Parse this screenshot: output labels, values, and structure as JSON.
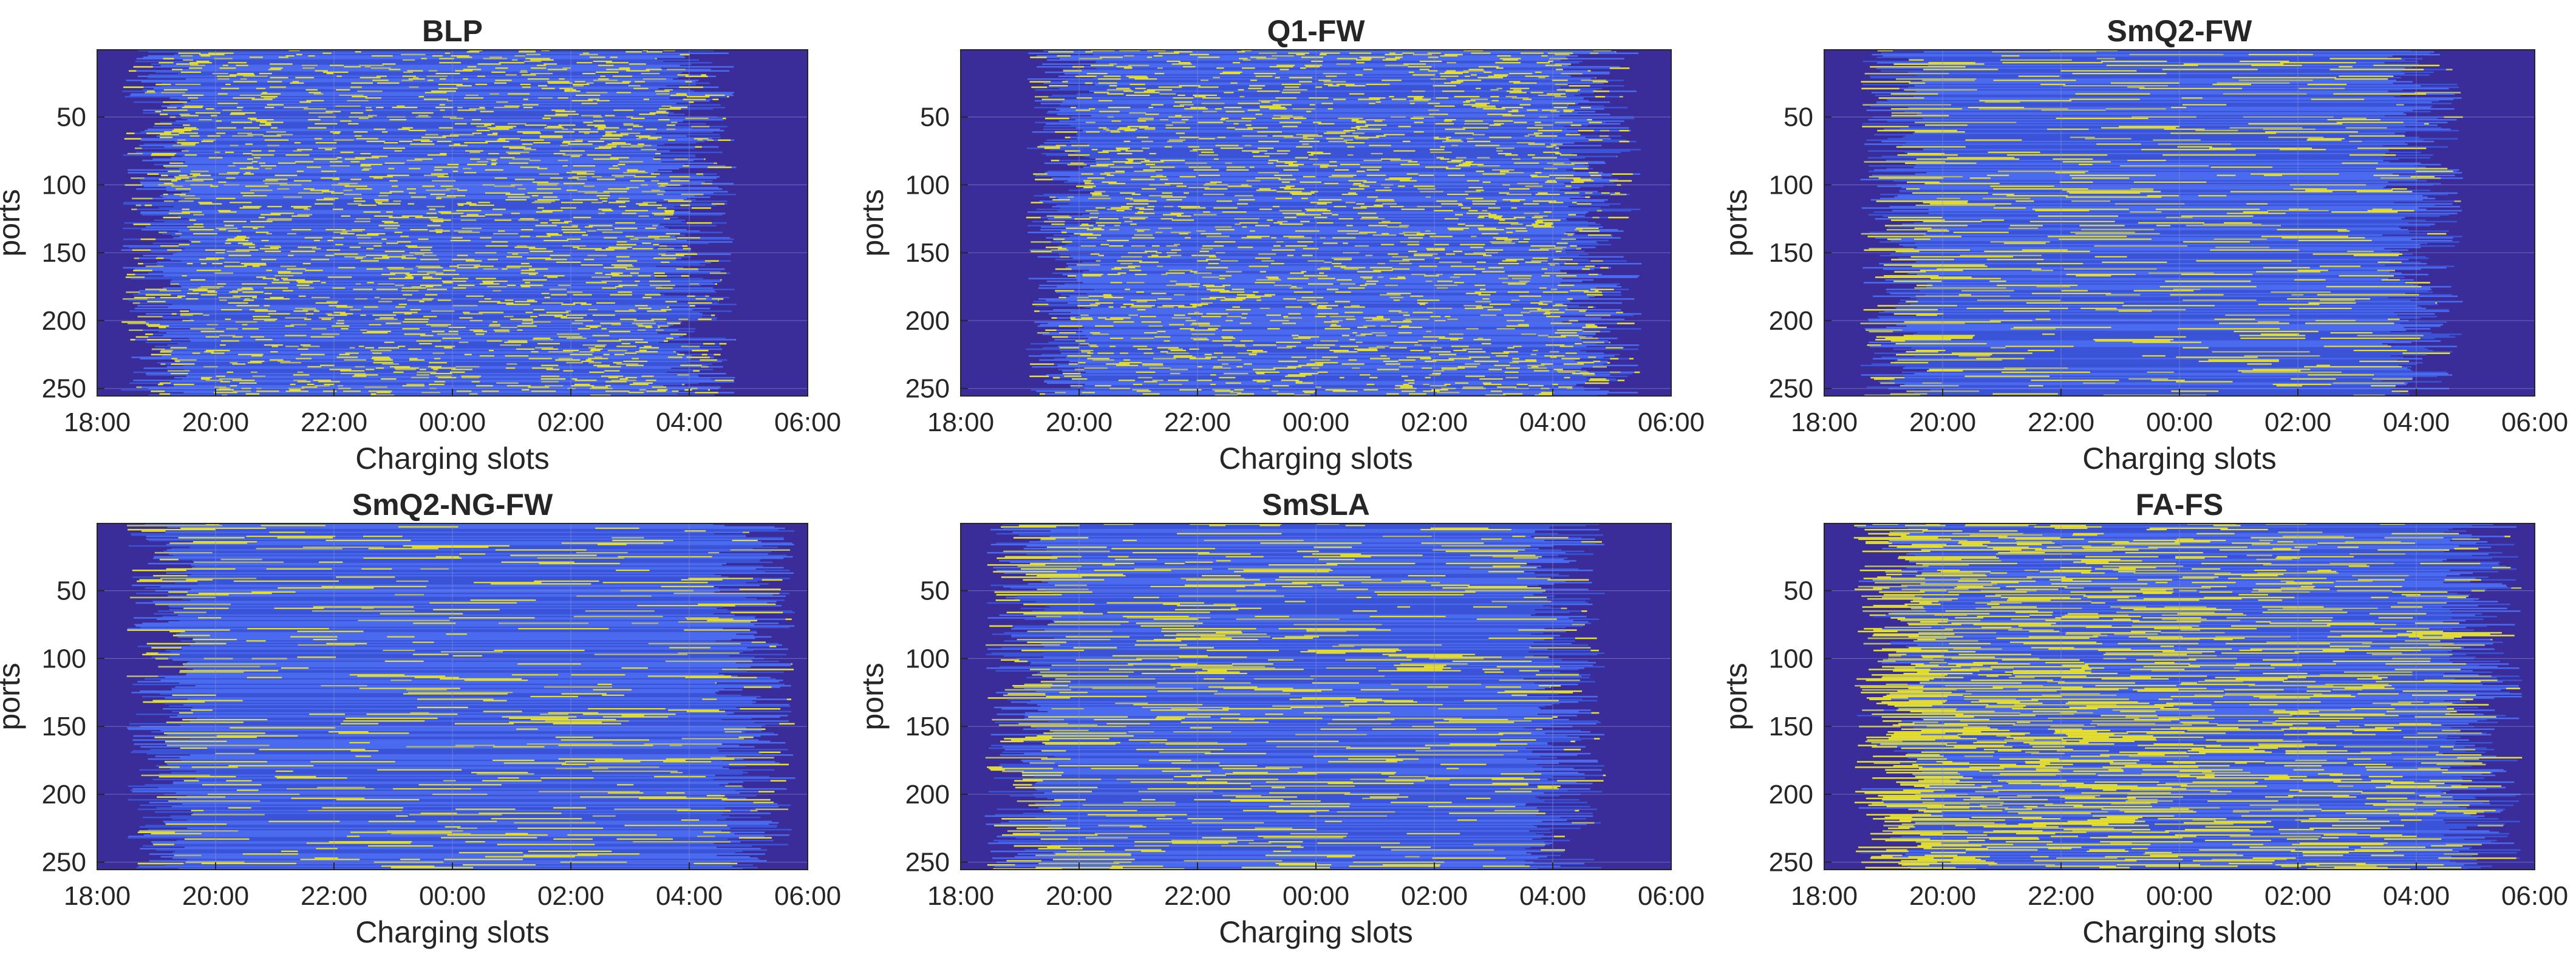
{
  "colors": {
    "background": "#ffffff",
    "idle": "#3a2d9a",
    "low": "#3b53d6",
    "mid": "#4a6af0",
    "high": "#e6e02c",
    "partial": "#b6b86a",
    "grid": "#8a8fd0",
    "axis": "#262626"
  },
  "chart_data": [
    {
      "type": "heatmap",
      "title": "BLP",
      "xlabel": "Charging slots",
      "ylabel": "ports",
      "x_ticks": [
        "18:00",
        "20:00",
        "22:00",
        "00:00",
        "02:00",
        "04:00",
        "06:00"
      ],
      "y_ticks": [
        50,
        100,
        150,
        200,
        250
      ],
      "ports": 255,
      "slots_range_hours": [
        0,
        12
      ],
      "grid": true,
      "pattern": {
        "active_start_h": 0.4,
        "active_end_h": 10.8,
        "yellow_density": 0.32,
        "front_load": 0.0,
        "dashed": true,
        "seed": 11
      }
    },
    {
      "type": "heatmap",
      "title": "Q1-FW",
      "xlabel": "Charging slots",
      "ylabel": "ports",
      "x_ticks": [
        "18:00",
        "20:00",
        "22:00",
        "00:00",
        "02:00",
        "04:00",
        "06:00"
      ],
      "y_ticks": [
        50,
        100,
        150,
        200,
        250
      ],
      "ports": 255,
      "slots_range_hours": [
        0,
        12
      ],
      "grid": true,
      "pattern": {
        "active_start_h": 1.1,
        "active_end_h": 11.5,
        "yellow_density": 0.3,
        "front_load": 0.0,
        "dashed": true,
        "seed": 23
      }
    },
    {
      "type": "heatmap",
      "title": "SmQ2-FW",
      "xlabel": "Charging slots",
      "ylabel": "ports",
      "x_ticks": [
        "18:00",
        "20:00",
        "22:00",
        "00:00",
        "02:00",
        "04:00",
        "06:00"
      ],
      "y_ticks": [
        50,
        100,
        150,
        200,
        250
      ],
      "ports": 255,
      "slots_range_hours": [
        0,
        12
      ],
      "grid": true,
      "pattern": {
        "active_start_h": 0.6,
        "active_end_h": 10.8,
        "yellow_density": 0.22,
        "front_load": 0.2,
        "dashed": false,
        "seed": 37
      }
    },
    {
      "type": "heatmap",
      "title": "SmQ2-NG-FW",
      "xlabel": "Charging slots",
      "ylabel": "ports",
      "x_ticks": [
        "18:00",
        "20:00",
        "22:00",
        "00:00",
        "02:00",
        "04:00",
        "06:00"
      ],
      "y_ticks": [
        50,
        100,
        150,
        200,
        250
      ],
      "ports": 255,
      "slots_range_hours": [
        0,
        12
      ],
      "grid": true,
      "pattern": {
        "active_start_h": 0.5,
        "active_end_h": 11.8,
        "yellow_density": 0.22,
        "front_load": 0.1,
        "dashed": false,
        "seed": 41
      }
    },
    {
      "type": "heatmap",
      "title": "SmSLA",
      "xlabel": "Charging slots",
      "ylabel": "ports",
      "x_ticks": [
        "18:00",
        "20:00",
        "22:00",
        "00:00",
        "02:00",
        "04:00",
        "06:00"
      ],
      "y_ticks": [
        50,
        100,
        150,
        200,
        250
      ],
      "ports": 255,
      "slots_range_hours": [
        0,
        12
      ],
      "grid": true,
      "pattern": {
        "active_start_h": 0.4,
        "active_end_h": 10.9,
        "yellow_density": 0.22,
        "front_load": 0.3,
        "dashed": false,
        "seed": 53
      }
    },
    {
      "type": "heatmap",
      "title": "FA-FS",
      "xlabel": "Charging slots",
      "ylabel": "ports",
      "x_ticks": [
        "18:00",
        "20:00",
        "22:00",
        "00:00",
        "02:00",
        "04:00",
        "06:00"
      ],
      "y_ticks": [
        50,
        100,
        150,
        200,
        250
      ],
      "ports": 255,
      "slots_range_hours": [
        0,
        12
      ],
      "grid": true,
      "pattern": {
        "active_start_h": 0.5,
        "active_end_h": 11.8,
        "yellow_density": 0.3,
        "front_load": 0.9,
        "dashed": false,
        "seed": 67
      }
    }
  ]
}
